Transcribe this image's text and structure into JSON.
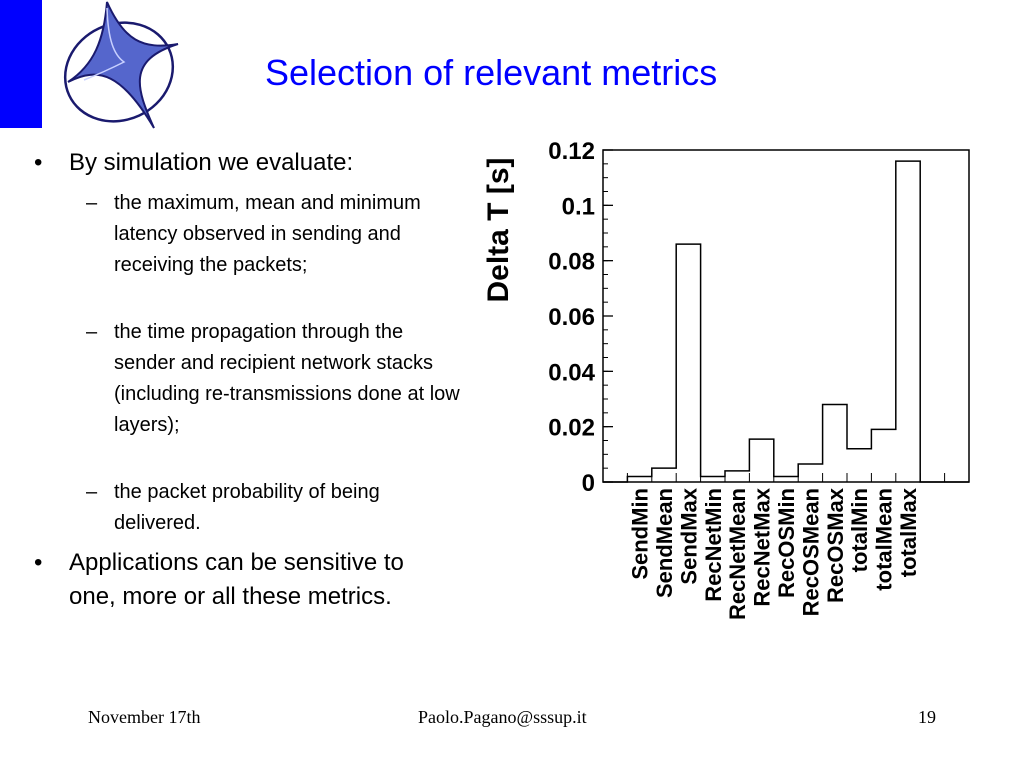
{
  "slide": {
    "title": "Selection of relevant metrics",
    "bullets": [
      {
        "text": "By simulation we evaluate:",
        "subitems": [
          "the maximum, mean and minimum latency observed in sending and receiving the packets;",
          "the time propagation through the sender and recipient network stacks (including re-transmissions done at low layers);",
          "the packet probability of being delivered."
        ]
      },
      {
        "text": "Applications can be sensitive to one, more or all these metrics."
      }
    ],
    "bullet_char": "•",
    "dash_char": "–"
  },
  "footer": {
    "date": "November 17th",
    "email": "Paolo.Pagano@sssup.it",
    "page": "19"
  },
  "colors": {
    "accent": "#0000ff",
    "logo_star": "#5566cc",
    "logo_outline": "#1a1a6e"
  },
  "chart_data": {
    "type": "bar",
    "style": "histogram-step",
    "title": "",
    "xlabel": "",
    "ylabel": "Delta T [s]",
    "ylim": [
      0,
      0.12
    ],
    "yticks": [
      "0",
      "0.02",
      "0.04",
      "0.06",
      "0.08",
      "0.1",
      "0.12"
    ],
    "ytick_values": [
      0,
      0.02,
      0.04,
      0.06,
      0.08,
      0.1,
      0.12
    ],
    "categories": [
      "SendMin",
      "SendMean",
      "SendMax",
      "RecNetMin",
      "RecNetMean",
      "RecNetMax",
      "RecOSMin",
      "RecOSMean",
      "RecOSMax",
      "totalMin",
      "totalMean",
      "totalMax"
    ],
    "bins": [
      {
        "label": "",
        "value": 0
      },
      {
        "label": "SendMin",
        "value": 0.002
      },
      {
        "label": "SendMean",
        "value": 0.005
      },
      {
        "label": "SendMax",
        "value": 0.086
      },
      {
        "label": "RecNetMin",
        "value": 0.002
      },
      {
        "label": "RecNetMean",
        "value": 0.004
      },
      {
        "label": "RecNetMax",
        "value": 0.0155
      },
      {
        "label": "RecOSMin",
        "value": 0.002
      },
      {
        "label": "RecOSMean",
        "value": 0.0065
      },
      {
        "label": "RecOSMax",
        "value": 0.028
      },
      {
        "label": "totalMin",
        "value": 0.012
      },
      {
        "label": "totalMean",
        "value": 0.019
      },
      {
        "label": "totalMax",
        "value": 0.116
      },
      {
        "label": "",
        "value": 0
      },
      {
        "label": "",
        "value": 0
      }
    ],
    "grid": false,
    "legend": "none"
  }
}
